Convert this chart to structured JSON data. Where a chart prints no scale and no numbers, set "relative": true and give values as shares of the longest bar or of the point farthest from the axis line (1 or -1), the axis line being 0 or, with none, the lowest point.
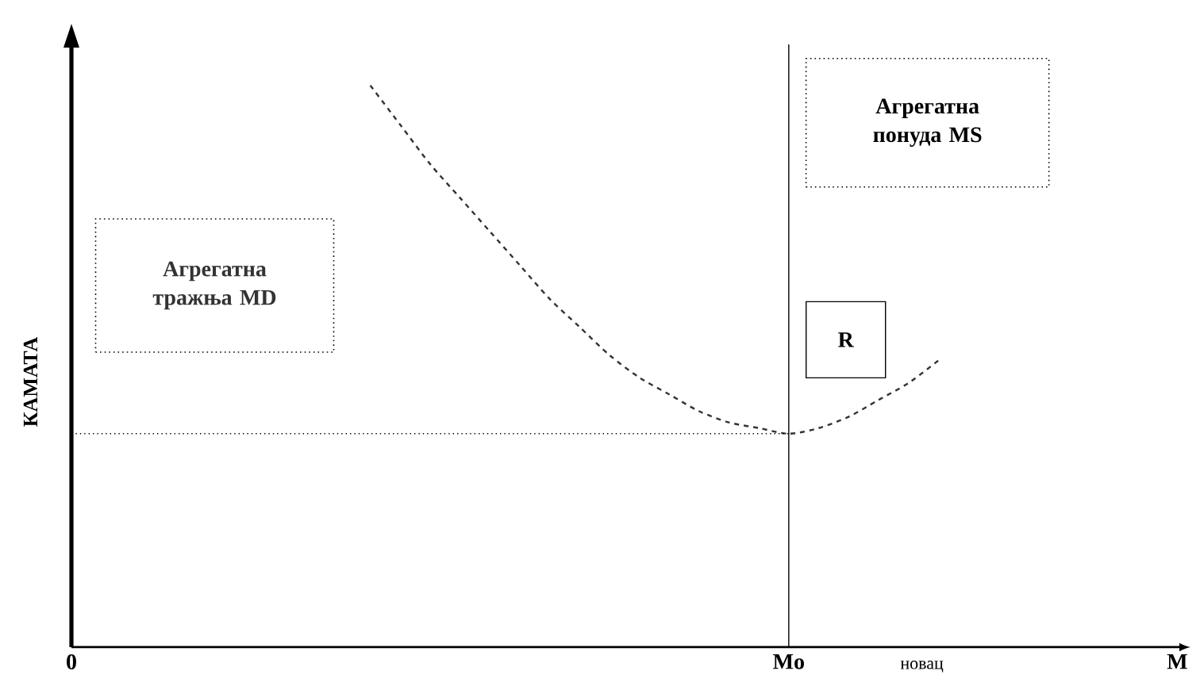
{
  "chart_data": {
    "type": "line",
    "relative": true,
    "line_style": "dashed",
    "xlabel": "новац",
    "ylabel": "КАМАТА",
    "categories": [
      "0",
      null,
      null,
      null,
      null,
      null,
      null,
      null,
      null,
      null,
      null,
      null,
      null,
      null,
      null,
      null,
      null,
      null,
      null,
      null,
      null,
      null,
      null,
      null,
      "Mo",
      null,
      null,
      null,
      null,
      null,
      null,
      null,
      null,
      null,
      null,
      null,
      null,
      "M"
    ],
    "series": [
      {
        "name": "Агрегатна тражња MD",
        "color": "#333333",
        "values": [
          null,
          null,
          null,
          null,
          null,
          null,
          null,
          null,
          null,
          null,
          1,
          0.93,
          0.86,
          0.8,
          0.74,
          0.68,
          0.62,
          0.57,
          0.52,
          0.48,
          0.45,
          0.42,
          0.4,
          0.39,
          0.38,
          0.39,
          0.41,
          0.44,
          0.47,
          0.51,
          null,
          null,
          null,
          null,
          null,
          null,
          null,
          null
        ]
      }
    ],
    "ref_lines": [
      {
        "axis": "x",
        "value": "Mo",
        "label": "Агрегатна понуда MS",
        "line_style": "solid",
        "color": "#000000"
      },
      {
        "axis": "y",
        "value": 0.38,
        "line_style": "dotted",
        "color": "#000000"
      }
    ],
    "annotations": [
      "R"
    ]
  }
}
